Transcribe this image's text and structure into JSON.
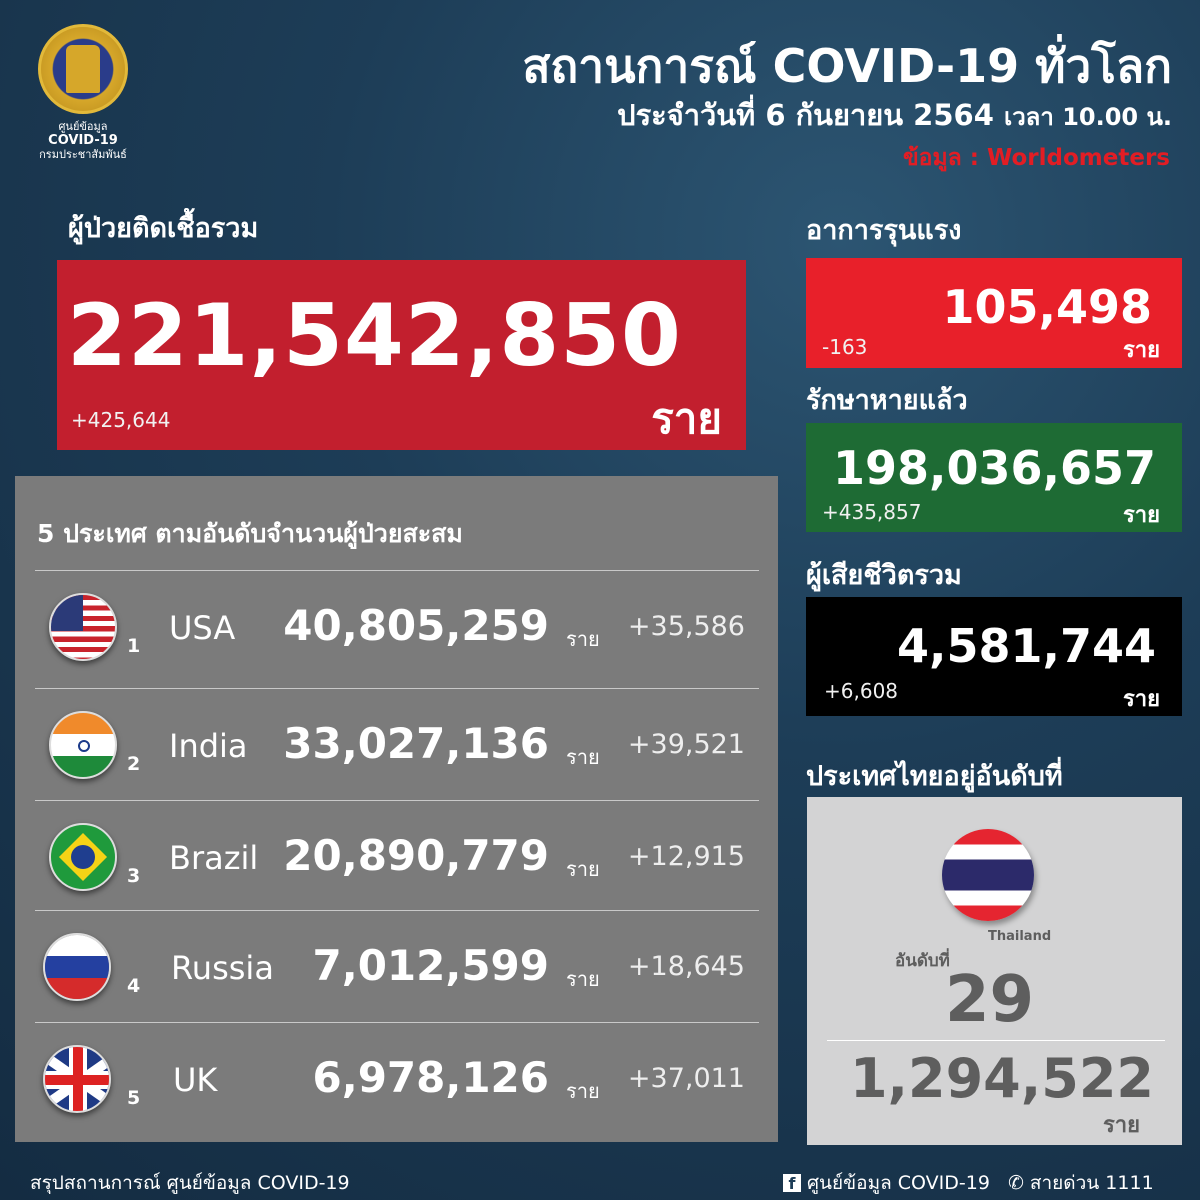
{
  "logo": {
    "line1": "ศูนย์ข้อมูล",
    "line2": "COVID-19",
    "line3": "กรมประชาสัมพันธ์"
  },
  "header": {
    "title": "สถานการณ์ COVID-19 ทั่วโลก",
    "date": "ประจำวันที่ 6 กันยายน 2564",
    "time": "เวลา 10.00 น.",
    "source": "ข้อมูล : Worldometers"
  },
  "total": {
    "label": "ผู้ป่วยติดเชื้อรวม",
    "value": "221,542,850",
    "delta": "+425,644",
    "unit": "ราย",
    "color": "#c21f2e"
  },
  "critical": {
    "label": "อาการรุนแรง",
    "value": "105,498",
    "delta": "-163",
    "unit": "ราย",
    "color": "#e8202a"
  },
  "recovered": {
    "label": "รักษาหายแล้ว",
    "value": "198,036,657",
    "delta": "+435,857",
    "unit": "ราย",
    "color": "#1e6b34"
  },
  "deaths": {
    "label": "ผู้เสียชีวิตรวม",
    "value": "4,581,744",
    "delta": "+6,608",
    "unit": "ราย",
    "color": "#000000"
  },
  "top5": {
    "title": "5 ประเทศ ตามอันดับจำนวนผู้ป่วยสะสม",
    "rows": [
      {
        "rank": "1",
        "country": "USA",
        "count": "40,805,259",
        "unit": "ราย",
        "delta": "+35,586",
        "flag": "usa-flag"
      },
      {
        "rank": "2",
        "country": "India",
        "count": "33,027,136",
        "unit": "ราย",
        "delta": "+39,521",
        "flag": "india-flag"
      },
      {
        "rank": "3",
        "country": "Brazil",
        "count": "20,890,779",
        "unit": "ราย",
        "delta": "+12,915",
        "flag": "brazil-flag"
      },
      {
        "rank": "4",
        "country": "Russia",
        "count": "7,012,599",
        "unit": "ราย",
        "delta": "+18,645",
        "flag": "russia-flag"
      },
      {
        "rank": "5",
        "country": "UK",
        "count": "6,978,126",
        "unit": "ราย",
        "delta": "+37,011",
        "flag": "uk-flag"
      }
    ]
  },
  "thailand": {
    "label": "ประเทศไทยอยู่อันดับที่",
    "country": "Thailand",
    "rank_label": "อันดับที่",
    "rank": "29",
    "count": "1,294,522",
    "unit": "ราย"
  },
  "footer": {
    "left": "สรุปสถานการณ์ ศูนย์ข้อมูล COVID-19",
    "facebook": "ศูนย์ข้อมูล COVID-19",
    "hotline": "สายด่วน 1111"
  }
}
